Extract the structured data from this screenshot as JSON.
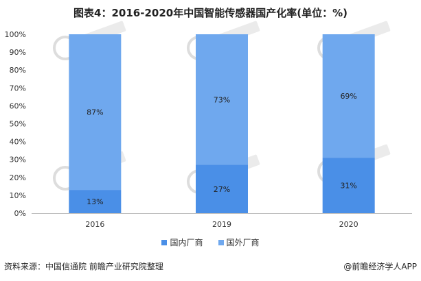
{
  "chart_data": {
    "type": "bar",
    "stacked": true,
    "title": "图表4：2016-2020年中国智能传感器国产化率(单位：%)",
    "categories": [
      "2016",
      "2019",
      "2020"
    ],
    "series": [
      {
        "name": "国内厂商",
        "values": [
          13,
          27,
          31
        ],
        "labels": [
          "13%",
          "27%",
          "31%"
        ],
        "color": "#4a8fe7"
      },
      {
        "name": "国外厂商",
        "values": [
          87,
          73,
          69
        ],
        "labels": [
          "87%",
          "73%",
          "69%"
        ],
        "color": "#6fa8ee"
      }
    ],
    "ylim": [
      0,
      100
    ],
    "yticks": [
      0,
      10,
      20,
      30,
      40,
      50,
      60,
      70,
      80,
      90,
      100
    ],
    "ytick_labels": [
      "0%",
      "10%",
      "20%",
      "30%",
      "40%",
      "50%",
      "60%",
      "70%",
      "80%",
      "90%",
      "100%"
    ],
    "grid": false,
    "legend_position": "bottom"
  },
  "footer": {
    "source": "资料来源：中国信通院 前瞻产业研究院整理",
    "brand": "@前瞻经济学人APP"
  },
  "colors": {
    "axis": "#bfbfbf",
    "text": "#333333",
    "watermark": "#dddddd"
  }
}
